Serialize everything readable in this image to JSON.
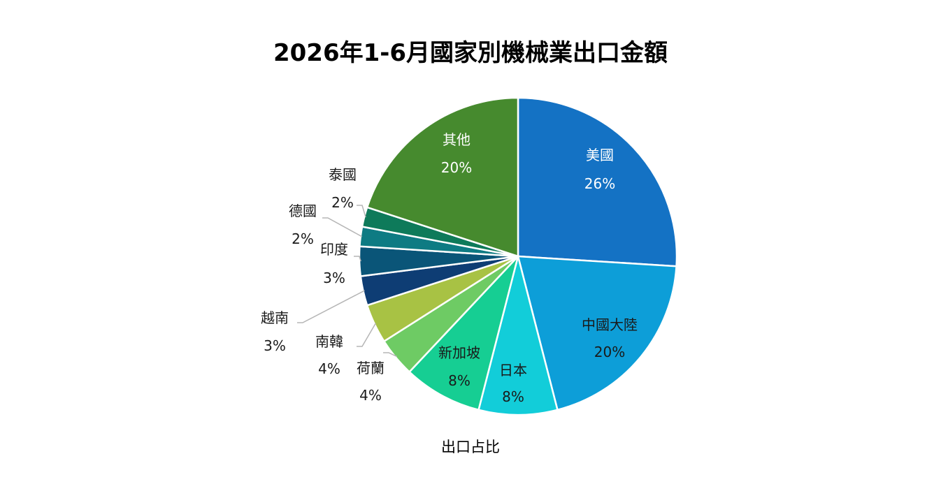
{
  "chart_data": {
    "type": "pie",
    "title": "2026年1-6月國家別機械業出口金額",
    "caption": "出口占比",
    "slices": [
      {
        "name": "美國",
        "value": 26,
        "label": "26%",
        "color": "#1472C4"
      },
      {
        "name": "中國大陸",
        "value": 20,
        "label": "20%",
        "color": "#0D9ED8"
      },
      {
        "name": "日本",
        "value": 8,
        "label": "8%",
        "color": "#12CDD9"
      },
      {
        "name": "新加坡",
        "value": 8,
        "label": "8%",
        "color": "#16CE93"
      },
      {
        "name": "荷蘭",
        "value": 4,
        "label": "4%",
        "color": "#6ECB64"
      },
      {
        "name": "南韓",
        "value": 4,
        "label": "4%",
        "color": "#A8C244"
      },
      {
        "name": "越南",
        "value": 3,
        "label": "3%",
        "color": "#0E3D74"
      },
      {
        "name": "印度",
        "value": 3,
        "label": "3%",
        "color": "#0A5578"
      },
      {
        "name": "德國",
        "value": 2,
        "label": "2%",
        "color": "#0E7B83"
      },
      {
        "name": "泰國",
        "value": 2,
        "label": "2%",
        "color": "#0E7A5A"
      },
      {
        "name": "其他",
        "value": 20,
        "label": "20%",
        "color": "#468A2E"
      }
    ]
  }
}
